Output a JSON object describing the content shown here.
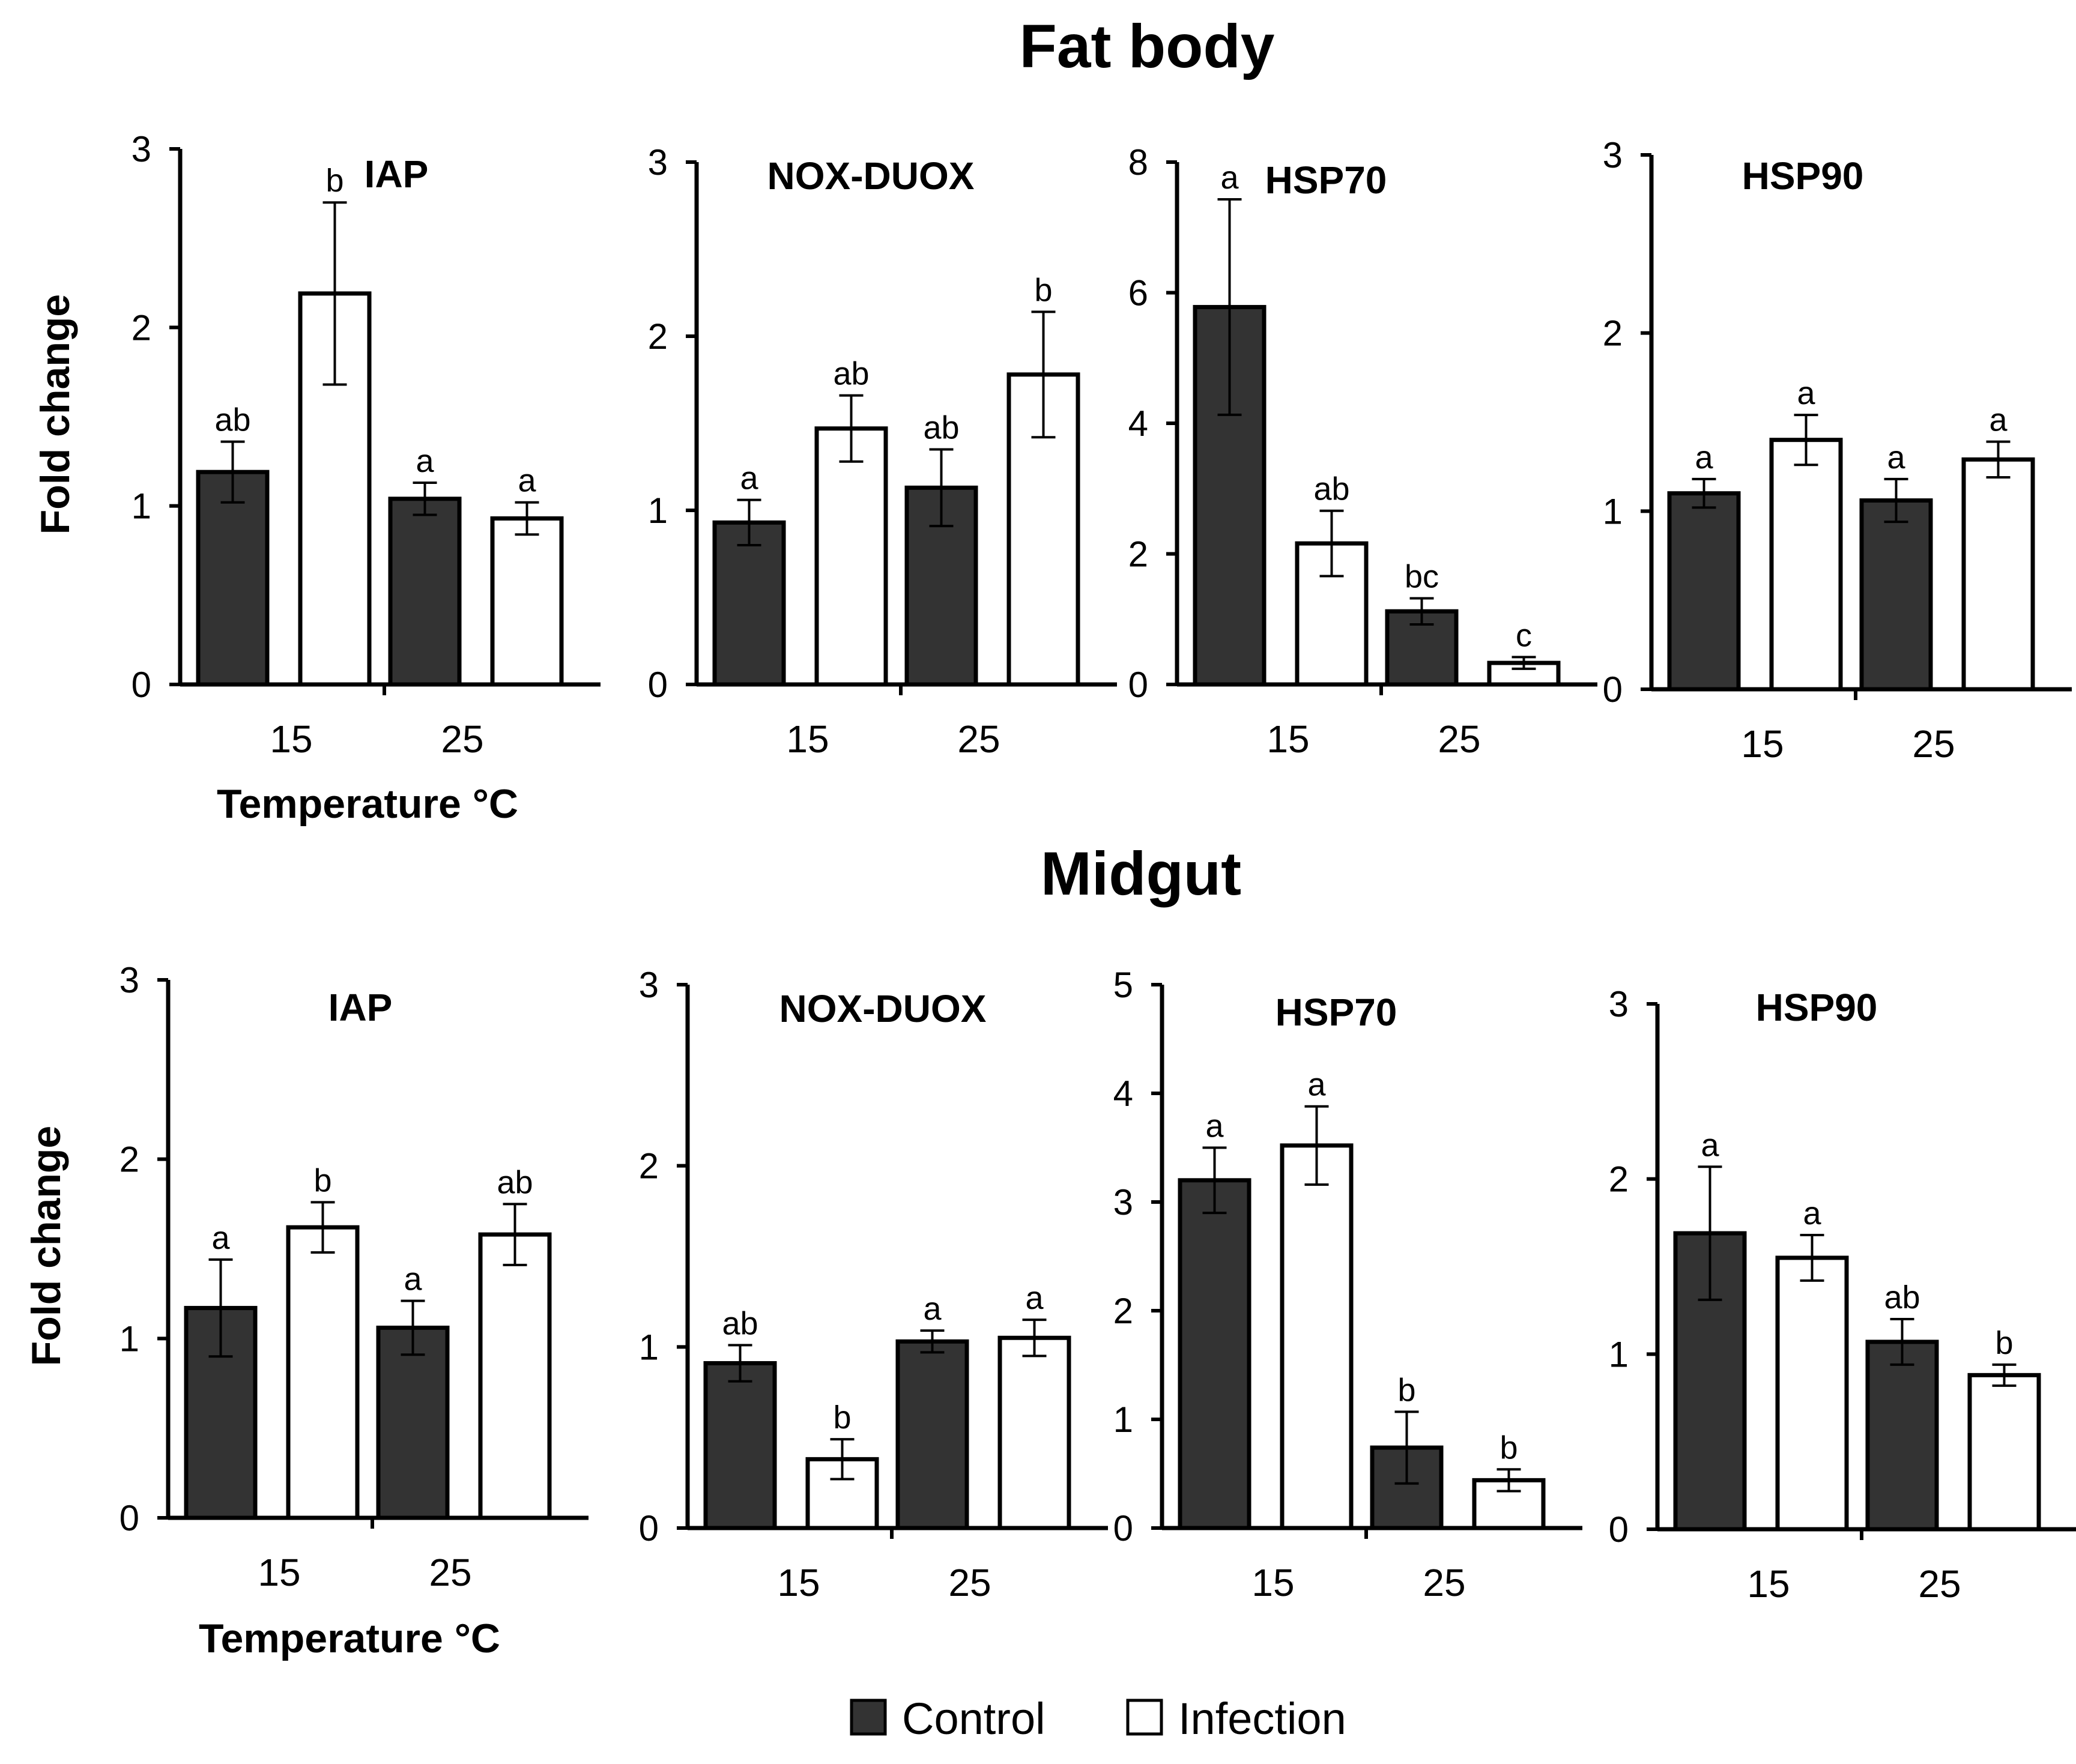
{
  "legend": {
    "control": "Control",
    "infection": "Infection"
  },
  "colors": {
    "control": "#333333",
    "infection": "#ffffff",
    "stroke": "#000000"
  },
  "chart_data": [
    {
      "type": "bar",
      "section": "Fat body",
      "title": "IAP",
      "categories": [
        "15",
        "25"
      ],
      "xlabel": "Temperature °C",
      "ylabel": "Fold change",
      "ylim": [
        0,
        3
      ],
      "yticks": [
        "0",
        "1",
        "2",
        "3"
      ],
      "series": [
        {
          "name": "Control",
          "values": [
            1.19,
            1.04
          ],
          "errors": [
            0.17,
            0.09
          ],
          "sig": [
            "ab",
            "a"
          ]
        },
        {
          "name": "Infection",
          "values": [
            2.19,
            0.93
          ],
          "errors": [
            0.51,
            0.09
          ],
          "sig": [
            "b",
            "a"
          ]
        }
      ]
    },
    {
      "type": "bar",
      "section": "Fat body",
      "title": "NOX-DUOX",
      "categories": [
        "15",
        "25"
      ],
      "xlabel": "",
      "ylabel": "",
      "ylim": [
        0,
        3
      ],
      "yticks": [
        "0",
        "1",
        "2",
        "3"
      ],
      "series": [
        {
          "name": "Control",
          "values": [
            0.93,
            1.13
          ],
          "errors": [
            0.13,
            0.22
          ],
          "sig": [
            "a",
            "ab"
          ]
        },
        {
          "name": "Infection",
          "values": [
            1.47,
            1.78
          ],
          "errors": [
            0.19,
            0.36
          ],
          "sig": [
            "ab",
            "b"
          ]
        }
      ]
    },
    {
      "type": "bar",
      "section": "Fat body",
      "title": "HSP70",
      "categories": [
        "15",
        "25"
      ],
      "xlabel": "",
      "ylabel": "",
      "ylim": [
        0,
        8
      ],
      "yticks": [
        "0",
        "2",
        "4",
        "6",
        "8"
      ],
      "series": [
        {
          "name": "Control",
          "values": [
            5.78,
            1.12
          ],
          "errors": [
            1.65,
            0.2
          ],
          "sig": [
            "a",
            "bc"
          ]
        },
        {
          "name": "Infection",
          "values": [
            2.16,
            0.33
          ],
          "errors": [
            0.5,
            0.09
          ],
          "sig": [
            "ab",
            "c"
          ]
        }
      ]
    },
    {
      "type": "bar",
      "section": "Fat body",
      "title": "HSP90",
      "categories": [
        "15",
        "25"
      ],
      "xlabel": "",
      "ylabel": "",
      "ylim": [
        0,
        3
      ],
      "yticks": [
        "0",
        "1",
        "2",
        "3"
      ],
      "series": [
        {
          "name": "Control",
          "values": [
            1.1,
            1.06
          ],
          "errors": [
            0.08,
            0.12
          ],
          "sig": [
            "a",
            "a"
          ]
        },
        {
          "name": "Infection",
          "values": [
            1.4,
            1.29
          ],
          "errors": [
            0.14,
            0.1
          ],
          "sig": [
            "a",
            "a"
          ]
        }
      ]
    },
    {
      "type": "bar",
      "section": "Midgut",
      "title": "IAP",
      "categories": [
        "15",
        "25"
      ],
      "xlabel": "Temperature °C",
      "ylabel": "Fold change",
      "ylim": [
        0,
        3
      ],
      "yticks": [
        "0",
        "1",
        "2",
        "3"
      ],
      "series": [
        {
          "name": "Control",
          "values": [
            1.17,
            1.06
          ],
          "errors": [
            0.27,
            0.15
          ],
          "sig": [
            "a",
            "a"
          ]
        },
        {
          "name": "Infection",
          "values": [
            1.62,
            1.58
          ],
          "errors": [
            0.14,
            0.17
          ],
          "sig": [
            "b",
            "ab"
          ]
        }
      ]
    },
    {
      "type": "bar",
      "section": "Midgut",
      "title": "NOX-DUOX",
      "categories": [
        "15",
        "25"
      ],
      "xlabel": "",
      "ylabel": "",
      "ylim": [
        0,
        3
      ],
      "yticks": [
        "0",
        "1",
        "2",
        "3"
      ],
      "series": [
        {
          "name": "Control",
          "values": [
            0.91,
            1.03
          ],
          "errors": [
            0.1,
            0.06
          ],
          "sig": [
            "ab",
            "a"
          ]
        },
        {
          "name": "Infection",
          "values": [
            0.38,
            1.05
          ],
          "errors": [
            0.11,
            0.1
          ],
          "sig": [
            "b",
            "a"
          ]
        }
      ]
    },
    {
      "type": "bar",
      "section": "Midgut",
      "title": "HSP70",
      "categories": [
        "15",
        "25"
      ],
      "xlabel": "",
      "ylabel": "",
      "ylim": [
        0,
        5
      ],
      "yticks": [
        "0",
        "1",
        "2",
        "3",
        "4",
        "5"
      ],
      "series": [
        {
          "name": "Control",
          "values": [
            3.2,
            0.74
          ],
          "errors": [
            0.3,
            0.33
          ],
          "sig": [
            "a",
            "b"
          ]
        },
        {
          "name": "Infection",
          "values": [
            3.52,
            0.44
          ],
          "errors": [
            0.36,
            0.1
          ],
          "sig": [
            "a",
            "b"
          ]
        }
      ]
    },
    {
      "type": "bar",
      "section": "Midgut",
      "title": "HSP90",
      "categories": [
        "15",
        "25"
      ],
      "xlabel": "",
      "ylabel": "",
      "ylim": [
        0,
        3
      ],
      "yticks": [
        "0",
        "1",
        "2",
        "3"
      ],
      "series": [
        {
          "name": "Control",
          "values": [
            1.69,
            1.07
          ],
          "errors": [
            0.38,
            0.13
          ],
          "sig": [
            "a",
            "ab"
          ]
        },
        {
          "name": "Infection",
          "values": [
            1.55,
            0.88
          ],
          "errors": [
            0.13,
            0.06
          ],
          "sig": [
            "a",
            "b"
          ]
        }
      ]
    }
  ]
}
